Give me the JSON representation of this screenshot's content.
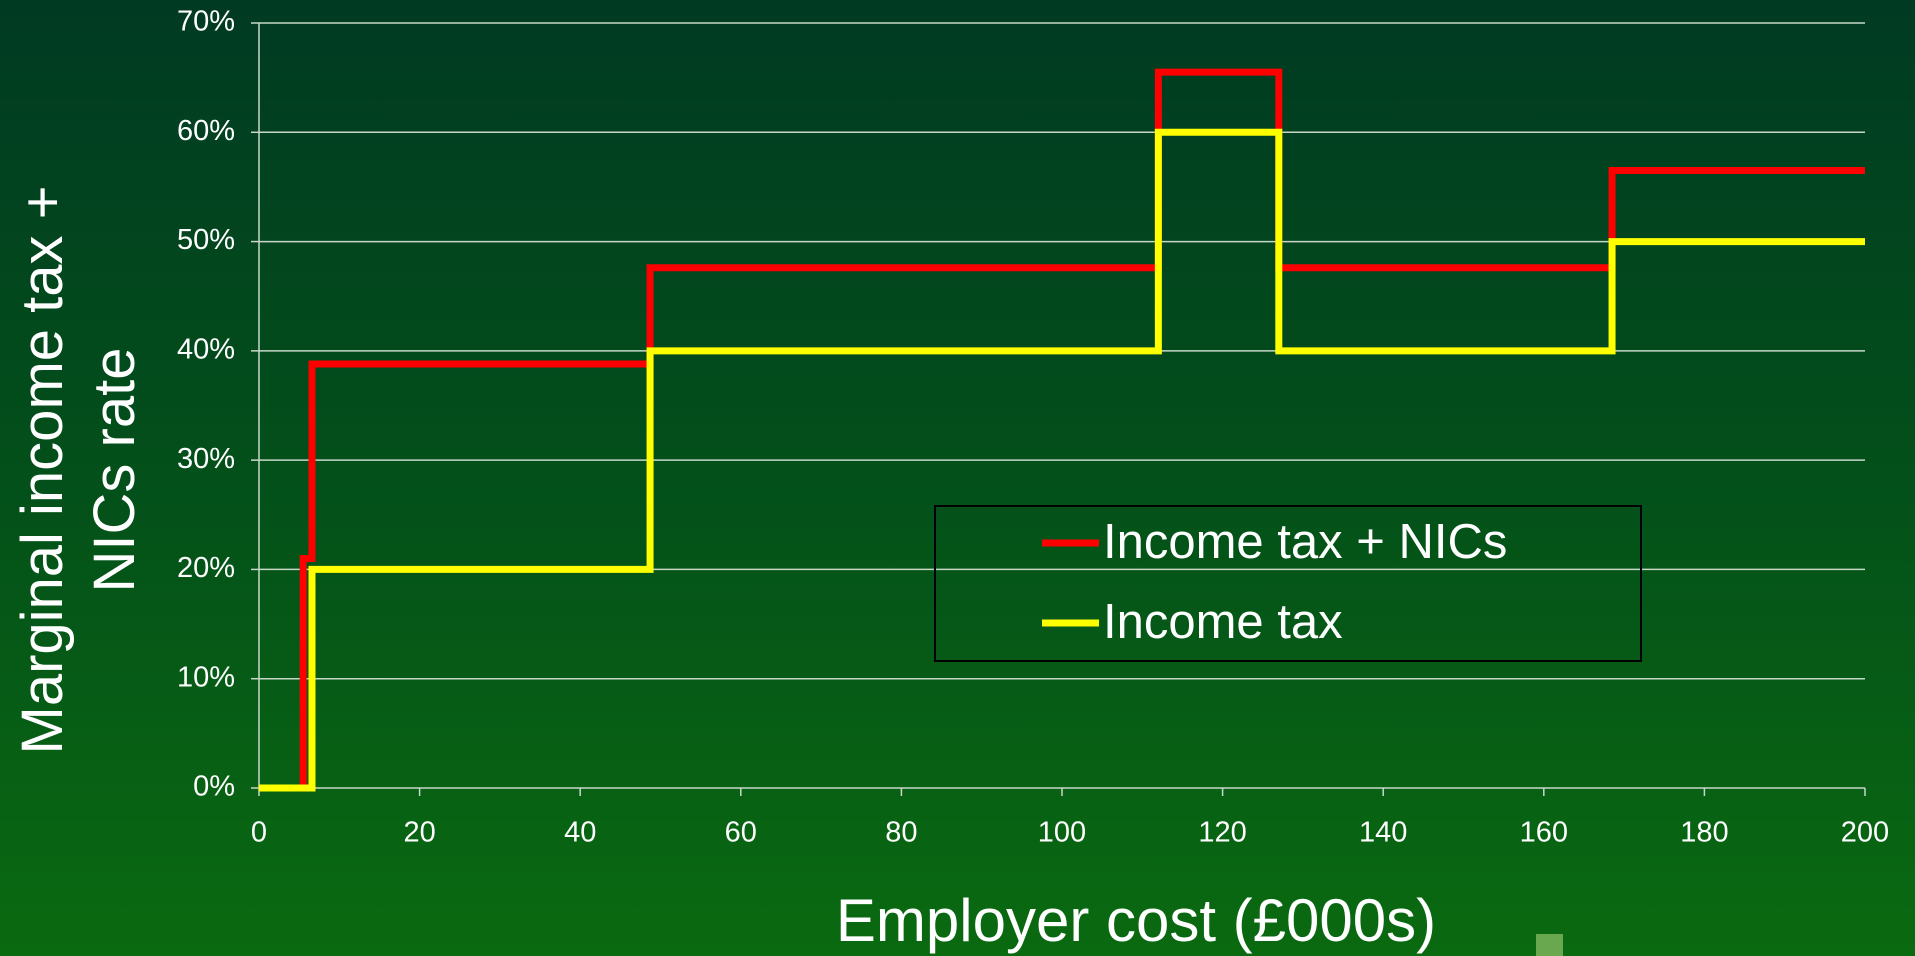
{
  "chart_data": {
    "type": "line",
    "y_label": "Marginal income tax + NICs rate",
    "x_label": "Employer cost (£000s)",
    "xlim": [
      0,
      200
    ],
    "xticks": [
      0,
      20,
      40,
      60,
      80,
      100,
      120,
      140,
      160,
      180,
      200
    ],
    "ylim": [
      0,
      70
    ],
    "yticks": [
      {
        "value": 0,
        "label": "0%"
      },
      {
        "value": 10,
        "label": "10%"
      },
      {
        "value": 20,
        "label": "20%"
      },
      {
        "value": 30,
        "label": "30%"
      },
      {
        "value": 40,
        "label": "40%"
      },
      {
        "value": 50,
        "label": "50%"
      },
      {
        "value": 60,
        "label": "60%"
      },
      {
        "value": 70,
        "label": "70%"
      }
    ],
    "grid": true,
    "legend": "center-right",
    "series": [
      {
        "name": "Income tax + NICs",
        "color": "#ff0000",
        "x": [
          0,
          5.5,
          5.5,
          6.6,
          6.6,
          48.7,
          48.7,
          112,
          112,
          127,
          127,
          168.5,
          168.5,
          200
        ],
        "values": [
          0,
          0,
          21,
          21,
          38.8,
          38.8,
          47.6,
          47.6,
          65.5,
          65.5,
          47.6,
          47.6,
          56.5,
          56.5
        ]
      },
      {
        "name": "Income tax",
        "color": "#ffff00",
        "x": [
          0,
          6.6,
          6.6,
          48.7,
          48.7,
          112,
          112,
          127,
          127,
          168.5,
          168.5,
          200
        ],
        "values": [
          0,
          0,
          20,
          20,
          40,
          40,
          60,
          60,
          40,
          40,
          50,
          50
        ]
      }
    ]
  }
}
